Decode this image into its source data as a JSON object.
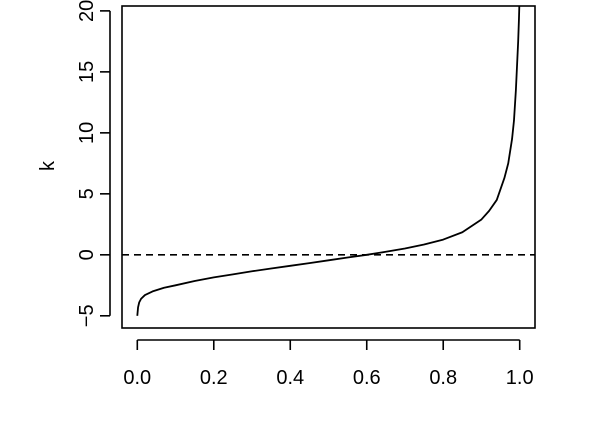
{
  "chart_data": {
    "type": "line",
    "title": "",
    "xlabel": "",
    "ylabel": "k",
    "xlim": [
      -0.04,
      1.04
    ],
    "ylim": [
      -6,
      20.4
    ],
    "x_ticks": [
      0.0,
      0.2,
      0.4,
      0.6,
      0.8,
      1.0
    ],
    "x_tick_labels": [
      "0.0",
      "0.2",
      "0.4",
      "0.6",
      "0.8",
      "1.0"
    ],
    "y_ticks": [
      -5,
      0,
      5,
      10,
      15,
      20
    ],
    "y_tick_labels": [
      "−5",
      "0",
      "5",
      "10",
      "15",
      "20"
    ],
    "grid": false,
    "legend": "none",
    "reference_line": {
      "y": 0,
      "style": "dashed"
    },
    "series": [
      {
        "x": [
          0.0,
          0.002,
          0.005,
          0.01,
          0.02,
          0.04,
          0.07,
          0.1,
          0.15,
          0.2,
          0.25,
          0.3,
          0.35,
          0.4,
          0.45,
          0.5,
          0.55,
          0.6,
          0.65,
          0.7,
          0.75,
          0.8,
          0.85,
          0.9,
          0.92,
          0.94,
          0.96,
          0.97,
          0.98,
          0.985,
          0.99,
          0.993,
          0.996,
          0.998,
          0.999
        ],
        "y": [
          -5.0,
          -4.3,
          -3.9,
          -3.6,
          -3.3,
          -3.0,
          -2.7,
          -2.5,
          -2.15,
          -1.85,
          -1.6,
          -1.35,
          -1.12,
          -0.9,
          -0.68,
          -0.45,
          -0.22,
          0.0,
          0.25,
          0.52,
          0.85,
          1.25,
          1.85,
          2.9,
          3.6,
          4.5,
          6.3,
          7.5,
          9.5,
          11.0,
          13.5,
          15.5,
          17.5,
          19.3,
          20.4
        ]
      }
    ],
    "colors": {
      "line": "#000000",
      "axes": "#000000",
      "background": "#ffffff"
    }
  }
}
